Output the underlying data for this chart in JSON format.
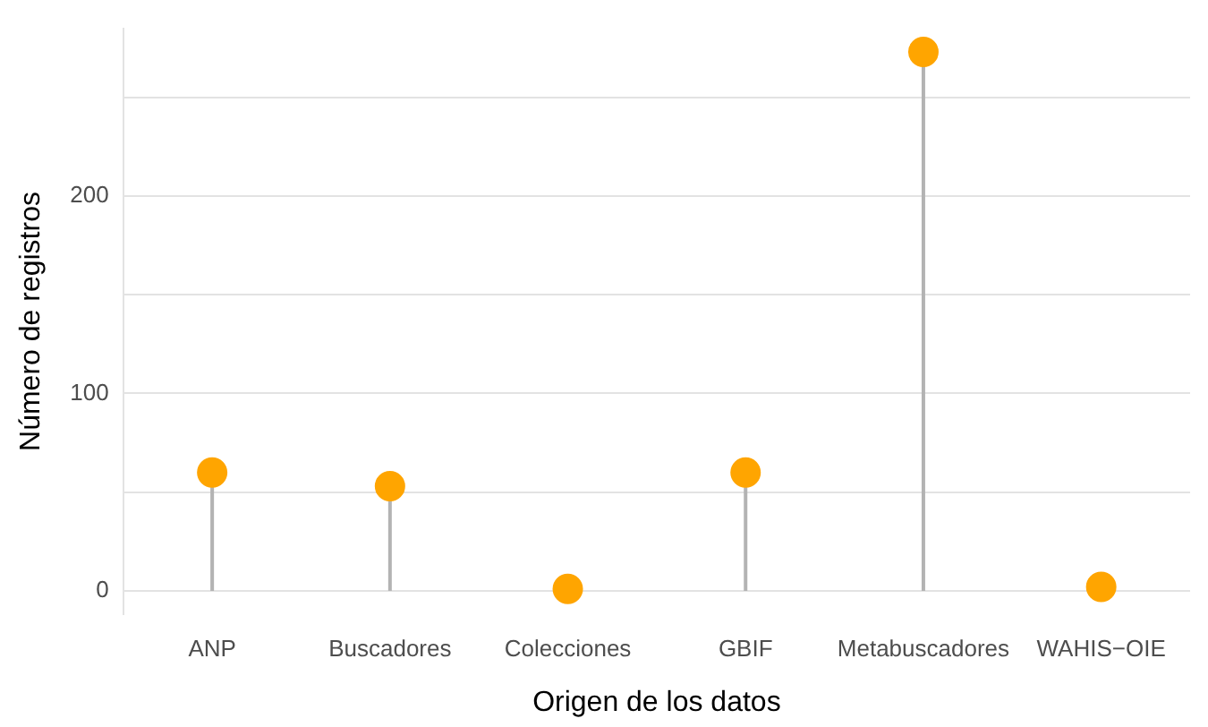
{
  "chart_data": {
    "type": "lollipop",
    "xlabel": "Origen de los datos",
    "ylabel": "Número de registros",
    "categories": [
      "ANP",
      "Buscadores",
      "Colecciones",
      "GBIF",
      "Metabuscadores",
      "WAHIS−OIE"
    ],
    "values": [
      60,
      53,
      1,
      60,
      273,
      2
    ],
    "color": "#ffa500",
    "yticks": [
      0,
      {
        "value": 50,
        "label": null
      },
      100,
      {
        "value": 150,
        "label": null
      },
      200,
      {
        "value": 250,
        "label": null
      }
    ],
    "ylim": [
      -12,
      285
    ],
    "grid": "y",
    "marker": "circle",
    "legend": false
  }
}
